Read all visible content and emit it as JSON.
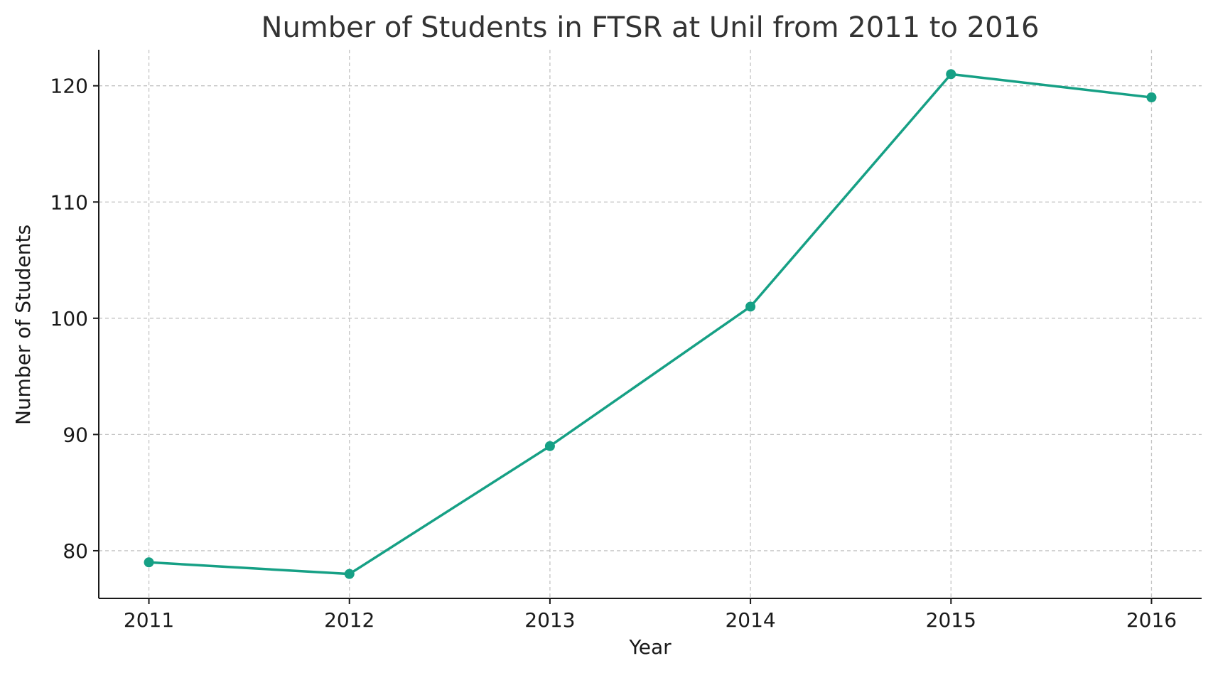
{
  "chart_data": {
    "type": "line",
    "title": "Number of Students in FTSR at Unil from 2011 to 2016",
    "xlabel": "Year",
    "ylabel": "Number of Students",
    "x": [
      2011,
      2012,
      2013,
      2014,
      2015,
      2016
    ],
    "x_tick_labels": [
      "2011",
      "2012",
      "2013",
      "2014",
      "2015",
      "2016"
    ],
    "y_ticks": [
      80,
      90,
      100,
      110,
      120
    ],
    "y_tick_labels": [
      "80",
      "90",
      "100",
      "110",
      "120"
    ],
    "ylim": [
      75.9,
      123.1
    ],
    "xlim": [
      2010.75,
      2016.25
    ],
    "grid": true,
    "series": [
      {
        "values": [
          79,
          78,
          89,
          101,
          121,
          119
        ],
        "color": "#16a085",
        "marker": "circle"
      }
    ]
  }
}
